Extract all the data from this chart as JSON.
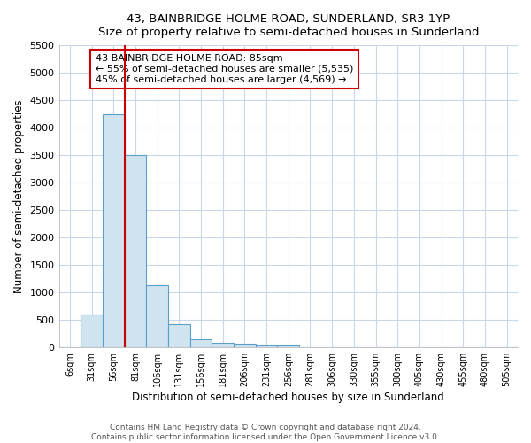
{
  "title": "43, BAINBRIDGE HOLME ROAD, SUNDERLAND, SR3 1YP",
  "subtitle": "Size of property relative to semi-detached houses in Sunderland",
  "xlabel": "Distribution of semi-detached houses by size in Sunderland",
  "ylabel": "Number of semi-detached properties",
  "categories": [
    "6sqm",
    "31sqm",
    "56sqm",
    "81sqm",
    "106sqm",
    "131sqm",
    "156sqm",
    "181sqm",
    "206sqm",
    "231sqm",
    "256sqm",
    "281sqm",
    "306sqm",
    "330sqm",
    "355sqm",
    "380sqm",
    "405sqm",
    "430sqm",
    "455sqm",
    "480sqm",
    "505sqm"
  ],
  "values": [
    0,
    600,
    4250,
    3500,
    1125,
    420,
    150,
    80,
    60,
    50,
    50,
    0,
    0,
    0,
    0,
    0,
    0,
    0,
    0,
    0,
    0
  ],
  "bar_color": "#d0e4f0",
  "bar_edge_color": "#5b9ec9",
  "red_line_x": 3.0,
  "annotation_text": "43 BAINBRIDGE HOLME ROAD: 85sqm\n← 55% of semi-detached houses are smaller (5,535)\n45% of semi-detached houses are larger (4,569) →",
  "annotation_box_color": "#ffffff",
  "annotation_box_edge_color": "#cc0000",
  "ylim": [
    0,
    5500
  ],
  "yticks": [
    0,
    500,
    1000,
    1500,
    2000,
    2500,
    3000,
    3500,
    4000,
    4500,
    5000,
    5500
  ],
  "footer": "Contains HM Land Registry data © Crown copyright and database right 2024.\nContains public sector information licensed under the Open Government Licence v3.0.",
  "bg_color": "#ffffff",
  "plot_bg_color": "#ffffff",
  "grid_color": "#c8d8e8"
}
